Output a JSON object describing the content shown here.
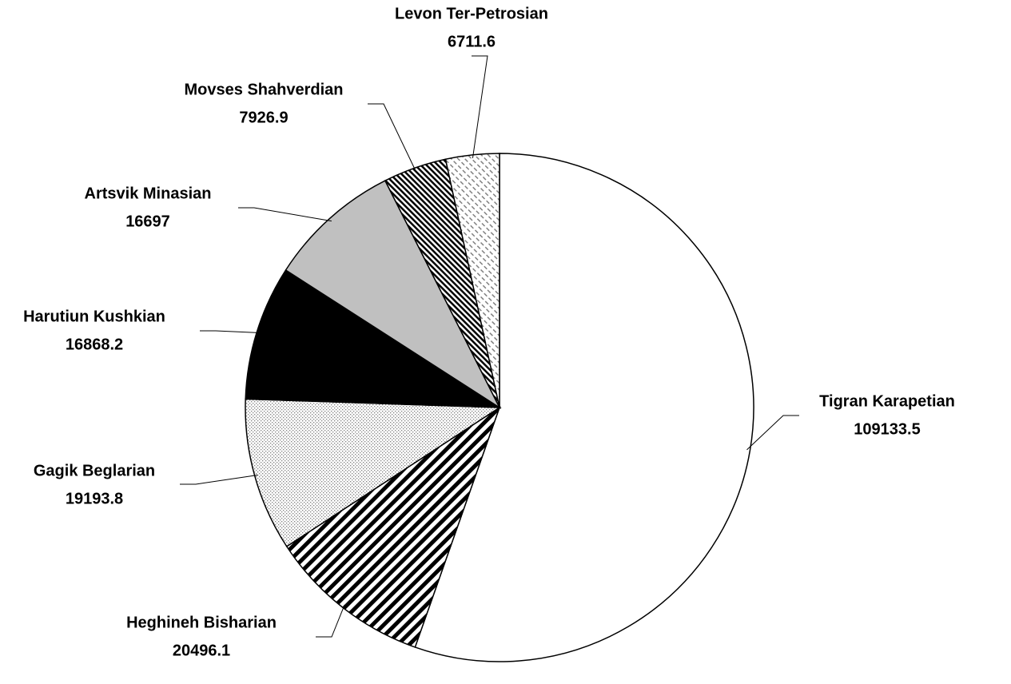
{
  "chart_data": {
    "type": "pie",
    "categories": [
      "Tigran Karapetian",
      "Heghineh Bisharian",
      "Gagik Beglarian",
      "Harutiun Kushkian",
      "Artsvik Minasian",
      "Movses Shahverdian",
      "Levon Ter-Petrosian"
    ],
    "values": [
      109133.5,
      20496.1,
      19193.8,
      16868.2,
      16697,
      7926.9,
      6711.6
    ],
    "colors": [
      "#ffffff",
      "#000000",
      "#808080",
      "#000000",
      "#c0c0c0",
      "#000000",
      "#808080"
    ]
  }
}
